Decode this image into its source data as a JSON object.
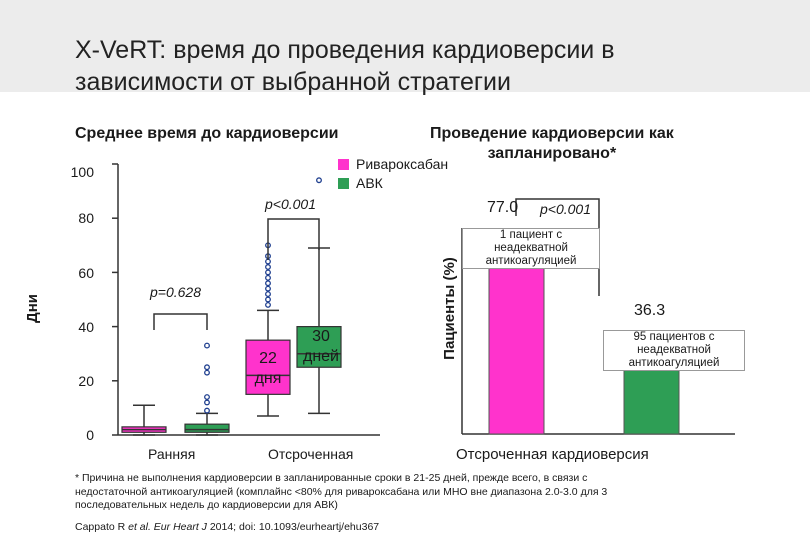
{
  "title_line1": "X-VeRT: время до проведения кардиоверсии в",
  "title_line2": "зависимости от выбранной стратегии",
  "colors": {
    "rivaroxaban": "#ff33cc",
    "avk": "#2e9e55",
    "header_bg": "#ececec"
  },
  "left_panel": {
    "subtitle": "Среднее время до кардиоверсии",
    "ylabel": "Дни",
    "legend": [
      "Ривароксабан",
      "АВК"
    ],
    "p_early": "p=0.628",
    "p_delayed": "p<0.001",
    "box_labels": {
      "riva": [
        "22",
        "дня"
      ],
      "avk": [
        "30",
        "дней"
      ]
    }
  },
  "right_panel": {
    "subtitle_line1": "Проведение кардиоверсии как",
    "subtitle_line2": "запланировано*",
    "ylabel": "Пациенты (%)",
    "pval": "p<0.001",
    "riva_value_label": "77.0",
    "avk_value_label": "36.3",
    "annotation_riva": "1 пациент с неадекватной антикоагуляцией",
    "annotation_avk": "95 пациентов с неадекватной антикоагуляцией",
    "category": "Отсроченная кардиоверсия"
  },
  "footnote": "* Причина не выполнения кардиоверсии в запланированные сроки в 21-25 дней, прежде всего, в связи с недостаточной антикоагуляцией (комплайнс <80% для ривароксабана или МНО вне диапазона 2.0-3.0 для 3 последовательных недель до кардиоверсии для АВК)",
  "citation": "Cappato R et al. Eur Heart J 2014; doi: 10.1093/eurheartj/ehu367",
  "chart_data": [
    {
      "type": "box",
      "ylabel": "Дни",
      "ylim": [
        0,
        100
      ],
      "yticks": [
        "0",
        "20",
        "40",
        "60",
        "80",
        "100"
      ],
      "categories": [
        "Ранняя",
        "Отсроченная"
      ],
      "series": [
        {
          "name": "Ривароксабан",
          "boxes": [
            {
              "category": "Ранняя",
              "q1": 1,
              "median": 2,
              "q3": 3,
              "whisker_low": 0,
              "whisker_high": 11,
              "outliers": []
            },
            {
              "category": "Отсроченная",
              "q1": 15,
              "median": 22,
              "q3": 35,
              "whisker_low": 7,
              "whisker_high": 46,
              "outliers": [
                48,
                50,
                52,
                54,
                56,
                58,
                60,
                62,
                64,
                66,
                70
              ]
            }
          ]
        },
        {
          "name": "АВК",
          "boxes": [
            {
              "category": "Ранняя",
              "q1": 1,
              "median": 2,
              "q3": 4,
              "whisker_low": 0,
              "whisker_high": 8,
              "outliers": [
                9,
                12,
                14,
                23,
                25,
                33
              ]
            },
            {
              "category": "Отсроченная",
              "q1": 25,
              "median": 30,
              "q3": 40,
              "whisker_low": 8,
              "whisker_high": 69,
              "outliers": [
                94
              ]
            }
          ]
        }
      ]
    },
    {
      "type": "bar",
      "ylabel": "Пациенты (%)",
      "ylim": [
        0,
        100
      ],
      "categories": [
        "Отсроченная кардиоверсия"
      ],
      "series": [
        {
          "name": "Ривароксабан",
          "values": [
            77.0
          ]
        },
        {
          "name": "АВК",
          "values": [
            36.3
          ]
        }
      ]
    }
  ]
}
